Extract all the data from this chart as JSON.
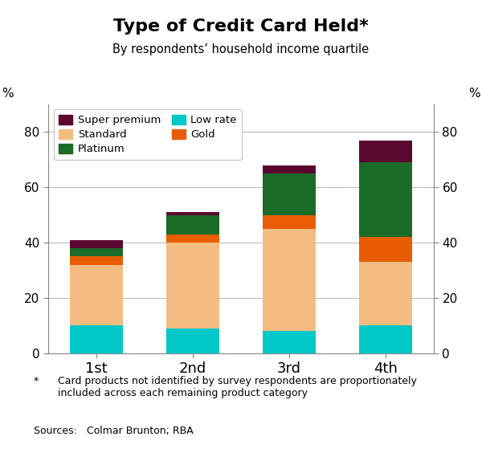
{
  "title": "Type of Credit Card Held*",
  "subtitle": "By respondents’ household income quartile",
  "categories": [
    "1st",
    "2nd",
    "3rd",
    "4th"
  ],
  "series": {
    "Low rate": [
      10,
      9,
      8,
      10
    ],
    "Standard": [
      22,
      31,
      37,
      23
    ],
    "Gold": [
      3,
      3,
      5,
      9
    ],
    "Platinum": [
      3,
      7,
      15,
      27
    ],
    "Super premium": [
      3,
      1,
      3,
      8
    ]
  },
  "colors": {
    "Low rate": "#00C8C8",
    "Standard": "#F5BC82",
    "Gold": "#E85D04",
    "Platinum": "#1B6B28",
    "Super premium": "#5B0830"
  },
  "stack_order": [
    "Low rate",
    "Standard",
    "Gold",
    "Platinum",
    "Super premium"
  ],
  "legend_col1": [
    "Super premium",
    "Platinum",
    "Gold"
  ],
  "legend_col2": [
    "Standard",
    "Low rate"
  ],
  "ylim": [
    0,
    90
  ],
  "yticks": [
    0,
    20,
    40,
    60,
    80
  ],
  "ylabel": "%",
  "footnote_star": "*",
  "footnote_text": "Card products not identified by survey respondents are proportionately\nincluded across each remaining product category",
  "sources": "Sources:   Colmar Brunton; RBA",
  "bar_width": 0.55
}
